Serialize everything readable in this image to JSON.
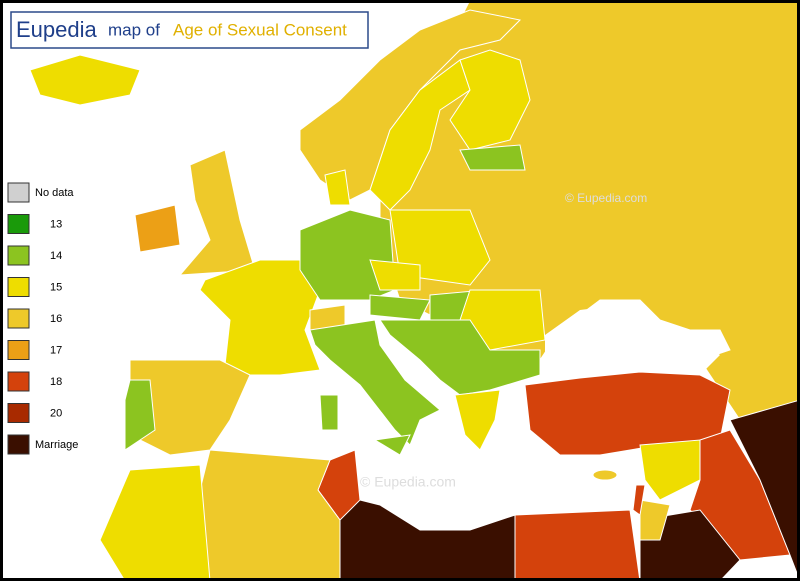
{
  "header": {
    "brand": "Eupedia",
    "prefix": "map of",
    "title": "Age of Sexual Consent"
  },
  "legend": {
    "items": [
      {
        "label": "No data",
        "color": "#d0d0d0"
      },
      {
        "label": "13",
        "color": "#1a9a0a"
      },
      {
        "label": "14",
        "color": "#8cc420"
      },
      {
        "label": "15",
        "color": "#eedd00"
      },
      {
        "label": "16",
        "color": "#eec92a"
      },
      {
        "label": "17",
        "color": "#eca016"
      },
      {
        "label": "18",
        "color": "#d4420c"
      },
      {
        "label": "20",
        "color": "#a82a00"
      },
      {
        "label": "Marriage",
        "color": "#3a0f00"
      }
    ]
  },
  "watermarks": [
    "© Eupedia.com",
    "©  Eupedia.com"
  ]
}
